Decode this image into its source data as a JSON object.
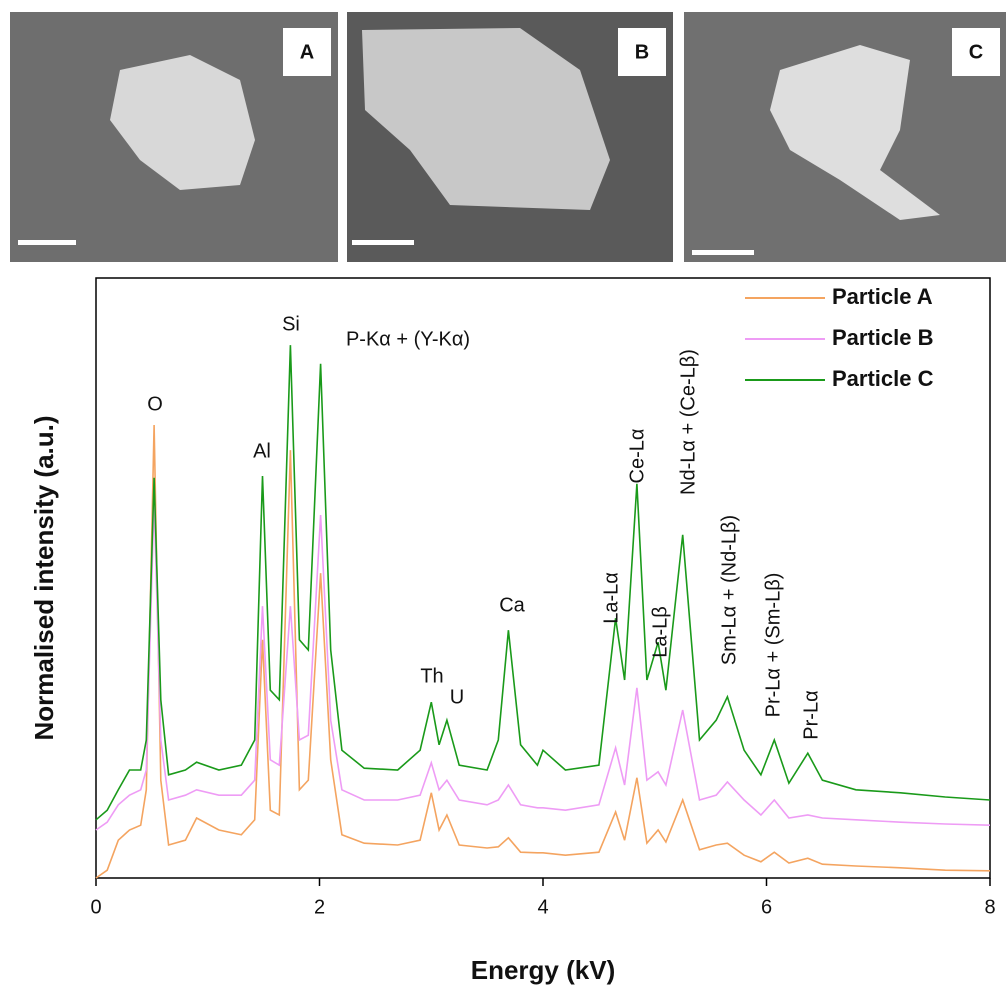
{
  "panels": [
    {
      "label": "A"
    },
    {
      "label": "B"
    },
    {
      "label": "C"
    }
  ],
  "chart_data": {
    "type": "line",
    "x_label": "Energy (kV)",
    "y_label": "Normalised intensity (a.u.)",
    "xlim": [
      0,
      8
    ],
    "xticks": [
      0,
      2,
      4,
      6,
      8
    ],
    "ylim": [
      0,
      100
    ],
    "legend": "upper right",
    "x": [
      0,
      0.1,
      0.2,
      0.3,
      0.4,
      0.45,
      0.52,
      0.58,
      0.65,
      0.8,
      0.9,
      1.1,
      1.3,
      1.42,
      1.49,
      1.56,
      1.64,
      1.74,
      1.82,
      1.9,
      2.01,
      2.1,
      2.2,
      2.4,
      2.7,
      2.9,
      3.0,
      3.07,
      3.14,
      3.25,
      3.5,
      3.6,
      3.69,
      3.8,
      3.95,
      4.0,
      4.2,
      4.5,
      4.65,
      4.73,
      4.84,
      4.93,
      5.03,
      5.1,
      5.25,
      5.4,
      5.55,
      5.65,
      5.8,
      5.95,
      6.07,
      6.2,
      6.37,
      6.5,
      6.8,
      7.2,
      7.6,
      8.0
    ],
    "series": [
      {
        "name": "Particle A",
        "color": "#f4a460",
        "values": [
          0,
          1.3,
          6.3,
          8,
          8.8,
          14.7,
          75.5,
          16.3,
          5.5,
          6.3,
          10,
          8,
          7.2,
          9.7,
          39.7,
          11.3,
          10.5,
          71.3,
          14.7,
          16.3,
          50.8,
          19.7,
          7.2,
          5.8,
          5.5,
          6.3,
          14.2,
          8,
          10.5,
          5.5,
          5,
          5.2,
          6.7,
          4.3,
          4.2,
          4.2,
          3.8,
          4.3,
          11,
          6.3,
          16.7,
          5.8,
          8,
          6,
          13,
          4.7,
          5.5,
          5.8,
          3.8,
          2.7,
          4.3,
          2.5,
          3.3,
          2.3,
          2,
          1.7,
          1.3,
          1.2
        ]
      },
      {
        "name": "Particle B",
        "color": "#ee9cf5",
        "values": [
          8,
          9.3,
          12.2,
          13.8,
          14.7,
          18,
          63,
          23,
          13,
          13.8,
          14.7,
          13.8,
          13.8,
          16.3,
          45.3,
          19.7,
          18.8,
          45.3,
          23,
          23.8,
          60.5,
          26.3,
          14.7,
          13,
          13,
          13.8,
          19.2,
          14.7,
          16.3,
          13,
          12.2,
          13,
          15.5,
          12.2,
          11.7,
          11.7,
          11.3,
          12.2,
          21.7,
          15.5,
          31.7,
          16.3,
          17.7,
          15.5,
          28,
          13,
          13.8,
          16,
          13,
          10.5,
          13,
          10,
          10.5,
          10,
          9.7,
          9.3,
          9,
          8.8
        ]
      },
      {
        "name": "Particle C",
        "color": "#1a9a1a",
        "values": [
          9.7,
          11.3,
          14.7,
          18,
          18,
          23,
          66.7,
          29.7,
          17.2,
          18,
          19.3,
          18,
          18.8,
          23,
          67,
          31.3,
          29.7,
          88.8,
          39.7,
          38,
          85.7,
          38,
          21.3,
          18.3,
          18,
          21.3,
          29.3,
          22.2,
          26.3,
          18.8,
          18,
          23,
          41.3,
          22.2,
          18.8,
          21.3,
          18,
          18.8,
          43.3,
          33,
          65.7,
          33,
          39.3,
          31.3,
          57.2,
          23,
          26.3,
          30.2,
          21.3,
          17.2,
          23,
          15.8,
          20.8,
          16.3,
          14.7,
          14.2,
          13.5,
          13
        ]
      }
    ],
    "annotations": [
      "O",
      "Al",
      "Si",
      "P-Kα + (Y-Kα)",
      "Th",
      "U",
      "Ca",
      "La-Lα",
      "Ce-Lα",
      "La-Lβ",
      "Nd-Lα + (Ce-Lβ)",
      "Sm-Lα + (Nd-Lβ)",
      "Pr-Lα + (Sm-Lβ)",
      "Pr-Lα"
    ]
  }
}
